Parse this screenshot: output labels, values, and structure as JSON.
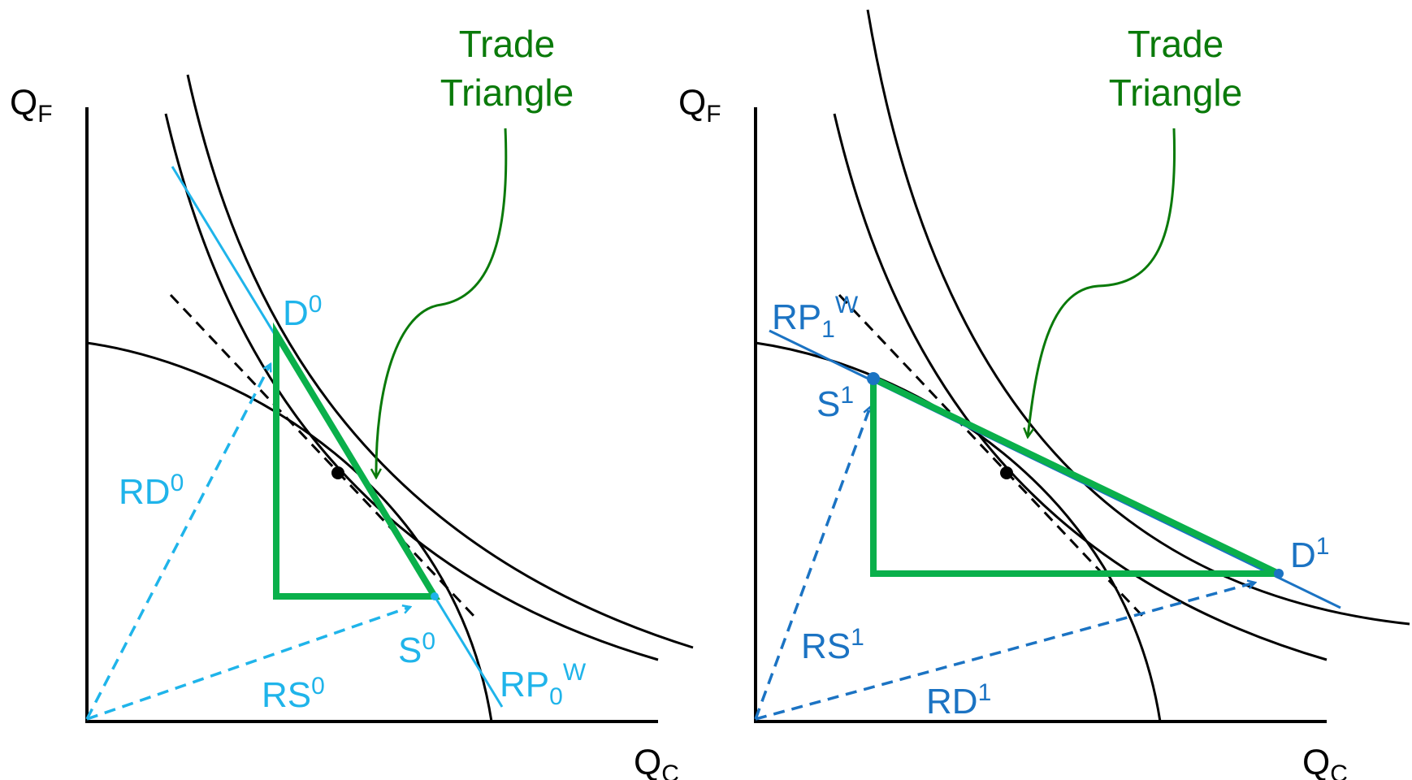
{
  "colors": {
    "axis": "#000000",
    "curve": "#000000",
    "triangle": "#0ab04b",
    "annotation": "#0a7a0a",
    "left_blue": "#1fb4ea",
    "right_blue": "#1b73c3"
  },
  "left": {
    "axis_y_main": "Q",
    "axis_y_sub": "F",
    "axis_x_main": "Q",
    "axis_x_sub": "C",
    "title_line1": "Trade",
    "title_line2": "Triangle",
    "d_main": "D",
    "d_sup": "0",
    "s_main": "S",
    "s_sup": "0",
    "rd_main": "RD",
    "rd_sup": "0",
    "rs_main": "RS",
    "rs_sup": "0",
    "rp_main": "RP",
    "rp_sub": "0",
    "rp_sup": "W"
  },
  "right": {
    "axis_y_main": "Q",
    "axis_y_sub": "F",
    "axis_x_main": "Q",
    "axis_x_sub": "C",
    "title_line1": "Trade",
    "title_line2": "Triangle",
    "d_main": "D",
    "d_sup": "1",
    "s_main": "S",
    "s_sup": "1",
    "rd_main": "RD",
    "rd_sup": "1",
    "rs_main": "RS",
    "rs_sup": "1",
    "rp_main": "RP",
    "rp_sub": "1",
    "rp_sup": "W"
  }
}
